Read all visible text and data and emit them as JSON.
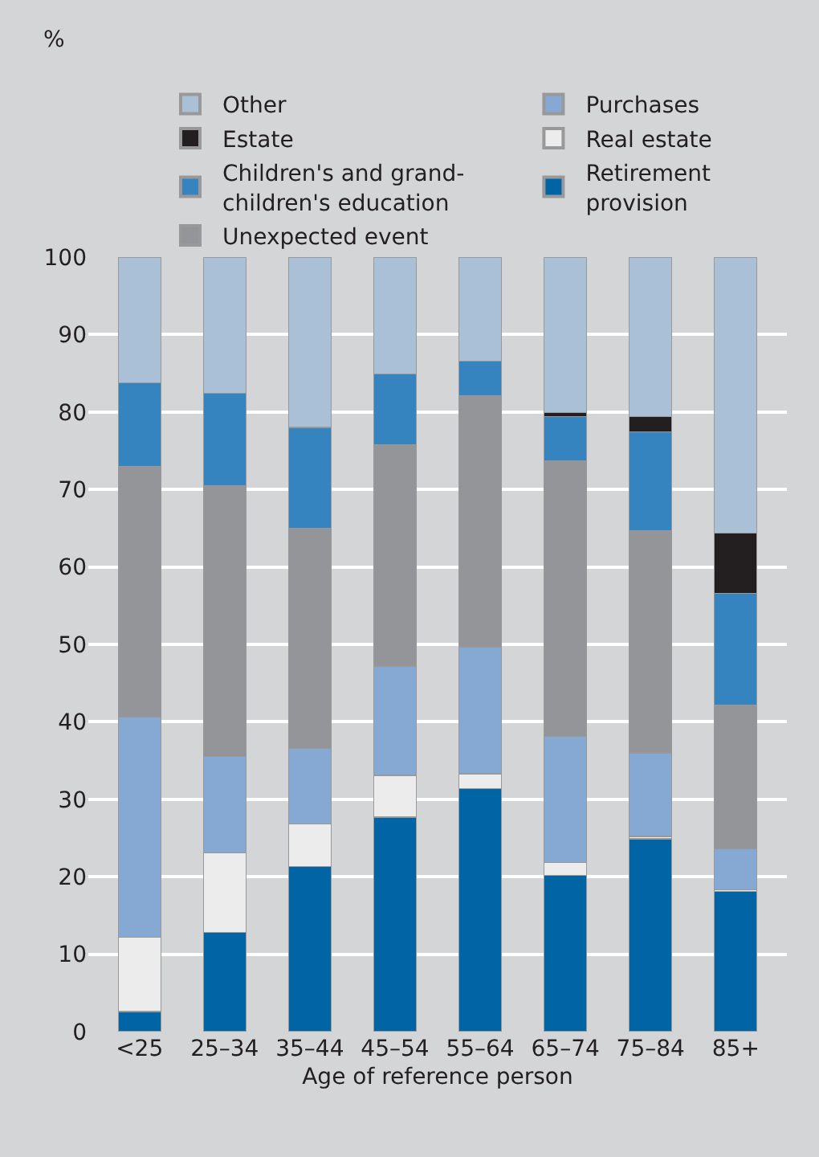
{
  "chart_data": {
    "type": "bar",
    "stacked": true,
    "annotations": [
      "%"
    ],
    "xlabel": "Age of reference person",
    "categories": [
      "<25",
      "25–34",
      "35–44",
      "45–54",
      "55–64",
      "65–74",
      "75–84",
      "85+"
    ],
    "series": [
      {
        "name": "Retirement provision",
        "color": "#0064a5",
        "values": [
          2.6,
          12.8,
          21.3,
          27.7,
          31.4,
          20.2,
          24.9,
          18.1
        ]
      },
      {
        "name": "Real estate",
        "color": "#ececec",
        "values": [
          9.6,
          10.3,
          5.5,
          5.4,
          1.9,
          1.6,
          0.3,
          0.2
        ]
      },
      {
        "name": "Purchases",
        "color": "#86a9d3",
        "values": [
          28.4,
          12.4,
          9.8,
          14.1,
          16.4,
          16.3,
          10.8,
          5.3
        ]
      },
      {
        "name": "Unexpected event",
        "color": "#939598",
        "values": [
          32.4,
          35.0,
          28.4,
          28.6,
          32.4,
          35.6,
          28.7,
          18.6
        ]
      },
      {
        "name": "Children's and grand-children's education",
        "color": "#3584bf",
        "values": [
          10.8,
          11.9,
          13.0,
          9.1,
          4.5,
          5.7,
          12.7,
          14.4
        ]
      },
      {
        "name": "Estate",
        "color": "#231f20",
        "values": [
          0,
          0,
          0,
          0,
          0,
          0.5,
          2.0,
          7.8
        ]
      },
      {
        "name": "Other",
        "color": "#a9c0d6",
        "values": [
          16.2,
          17.6,
          22.0,
          15.1,
          13.4,
          20.1,
          20.6,
          35.6
        ]
      }
    ],
    "ylim": [
      0,
      100
    ],
    "yticks": [
      0,
      10,
      20,
      30,
      40,
      50,
      60,
      70,
      80,
      90,
      100
    ],
    "grid": "y",
    "legend": "top"
  }
}
